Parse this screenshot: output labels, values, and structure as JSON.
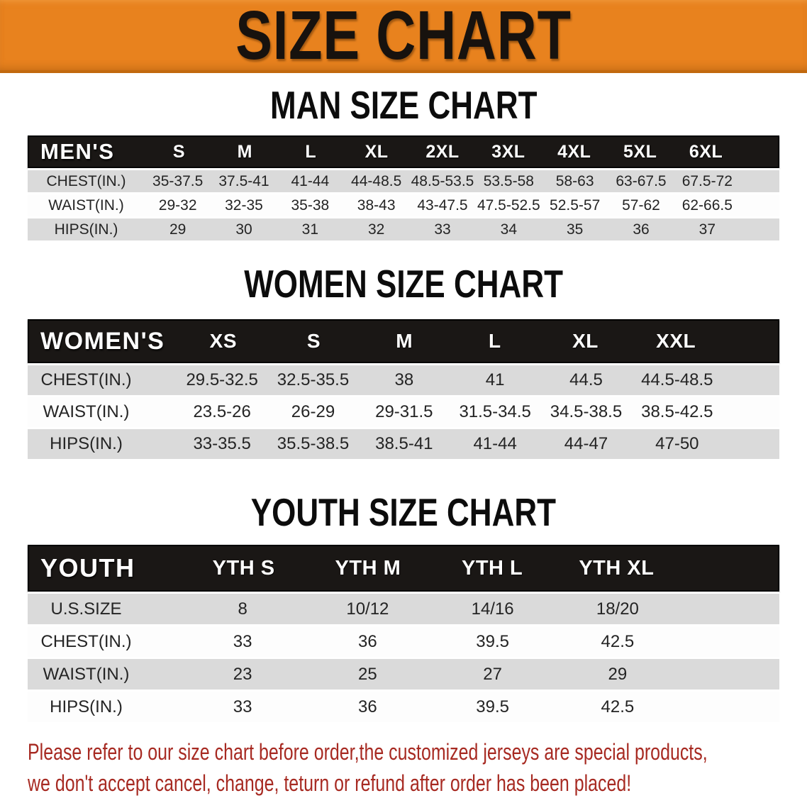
{
  "banner": {
    "title": "SIZE CHART",
    "bg_color": "#e8821e",
    "text_color": "#17120e"
  },
  "sections": [
    {
      "id": "men",
      "title": "MAN SIZE CHART",
      "corner_label": "MEN'S",
      "columns": [
        "S",
        "M",
        "L",
        "XL",
        "2XL",
        "3XL",
        "4XL",
        "5XL",
        "6XL"
      ],
      "rows": [
        {
          "label": "CHEST(IN.)",
          "values": [
            "35-37.5",
            "37.5-41",
            "41-44",
            "44-48.5",
            "48.5-53.5",
            "53.5-58",
            "58-63",
            "63-67.5",
            "67.5-72"
          ]
        },
        {
          "label": "WAIST(IN.)",
          "values": [
            "29-32",
            "32-35",
            "35-38",
            "38-43",
            "43-47.5",
            "47.5-52.5",
            "52.5-57",
            "57-62",
            "62-66.5"
          ]
        },
        {
          "label": "HIPS(IN.)",
          "values": [
            "29",
            "30",
            "31",
            "32",
            "33",
            "34",
            "35",
            "36",
            "37"
          ]
        }
      ]
    },
    {
      "id": "women",
      "title": "WOMEN SIZE CHART",
      "corner_label": "WOMEN'S",
      "columns": [
        "XS",
        "S",
        "M",
        "L",
        "XL",
        "XXL"
      ],
      "rows": [
        {
          "label": "CHEST(IN.)",
          "values": [
            "29.5-32.5",
            "32.5-35.5",
            "38",
            "41",
            "44.5",
            "44.5-48.5"
          ]
        },
        {
          "label": "WAIST(IN.)",
          "values": [
            "23.5-26",
            "26-29",
            "29-31.5",
            "31.5-34.5",
            "34.5-38.5",
            "38.5-42.5"
          ]
        },
        {
          "label": "HIPS(IN.)",
          "values": [
            "33-35.5",
            "35.5-38.5",
            "38.5-41",
            "41-44",
            "44-47",
            "47-50"
          ]
        }
      ]
    },
    {
      "id": "youth",
      "title": "YOUTH SIZE CHART",
      "corner_label": "YOUTH",
      "columns": [
        "YTH S",
        "YTH M",
        "YTH L",
        "YTH XL"
      ],
      "rows": [
        {
          "label": "U.S.SIZE",
          "values": [
            "8",
            "10/12",
            "14/16",
            "18/20"
          ]
        },
        {
          "label": "CHEST(IN.)",
          "values": [
            "33",
            "36",
            "39.5",
            "42.5"
          ]
        },
        {
          "label": "WAIST(IN.)",
          "values": [
            "23",
            "25",
            "27",
            "29"
          ]
        },
        {
          "label": "HIPS(IN.)",
          "values": [
            "33",
            "36",
            "39.5",
            "42.5"
          ]
        }
      ]
    }
  ],
  "footer": {
    "line1": "Please refer to our size chart before order,the customized jerseys are special products,",
    "line2": "we don't accept cancel, change, teturn or refund after order has been placed!",
    "text_color": "#a72a22"
  }
}
